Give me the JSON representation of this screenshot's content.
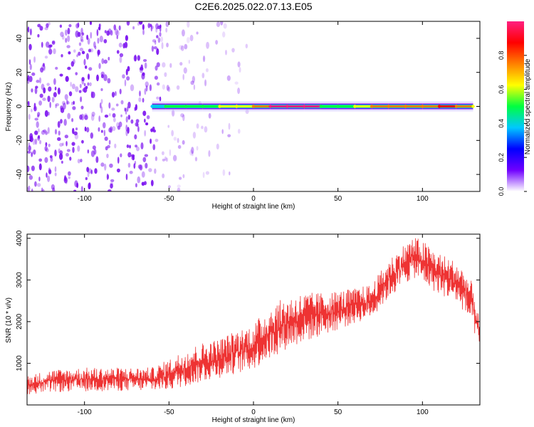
{
  "title": "C2E6.2025.022.07.13.E05",
  "colors": {
    "snr_line": "#ee3333",
    "ridge_low": "#6a00e8",
    "ridge_mid": "#00c8c0",
    "ridge_high": "#ff2050",
    "scatter": "#7a10f0"
  },
  "chart_data": [
    {
      "type": "heatmap",
      "xlabel": "Height of straight line (km)",
      "ylabel": "Frequency (Hz)",
      "xlim": [
        -134,
        134
      ],
      "ylim": [
        -50,
        50
      ],
      "x_ticks": [
        -100,
        -50,
        0,
        50,
        100
      ],
      "y_ticks": [
        -40,
        -20,
        0,
        20,
        40
      ],
      "colorbar": {
        "label": "Normalized spectral amplitude",
        "range": [
          0,
          1
        ],
        "ticks": [
          "0.0",
          "0.2",
          "0.4",
          "0.6",
          "0.8"
        ],
        "colormap": [
          "#ffffff",
          "#7000ff",
          "#0000ff",
          "#00c8ff",
          "#00ff40",
          "#ffff00",
          "#ff8000",
          "#ff0000",
          "#ff2080"
        ]
      },
      "ridge_frequency_hz": 0,
      "ridge_points": [
        {
          "x": -60,
          "amplitude": 0.35
        },
        {
          "x": -52,
          "amplitude": 0.45
        },
        {
          "x": -40,
          "amplitude": 0.5
        },
        {
          "x": -30,
          "amplitude": 0.55
        },
        {
          "x": -20,
          "amplitude": 0.6
        },
        {
          "x": -10,
          "amplitude": 0.65
        },
        {
          "x": 0,
          "amplitude": 0.8
        },
        {
          "x": 10,
          "amplitude": 0.95
        },
        {
          "x": 20,
          "amplitude": 1.0
        },
        {
          "x": 30,
          "amplitude": 0.95
        },
        {
          "x": 40,
          "amplitude": 0.45
        },
        {
          "x": 50,
          "amplitude": 0.55
        },
        {
          "x": 60,
          "amplitude": 0.65
        },
        {
          "x": 70,
          "amplitude": 0.7
        },
        {
          "x": 80,
          "amplitude": 0.75
        },
        {
          "x": 90,
          "amplitude": 0.8
        },
        {
          "x": 100,
          "amplitude": 0.75
        },
        {
          "x": 110,
          "amplitude": 0.9
        },
        {
          "x": 120,
          "amplitude": 0.8
        },
        {
          "x": 130,
          "amplitude": 0.6
        }
      ]
    },
    {
      "type": "line",
      "xlabel": "Height of straight line (km)",
      "ylabel": "SNR (10 * v/v)",
      "xlim": [
        -134,
        134
      ],
      "ylim": [
        0,
        4100
      ],
      "x_ticks": [
        -100,
        -50,
        0,
        50,
        100
      ],
      "y_ticks": [
        1000,
        2000,
        3000,
        4000
      ],
      "envelope": {
        "x": [
          -134,
          -120,
          -100,
          -80,
          -60,
          -50,
          -40,
          -30,
          -20,
          -10,
          0,
          10,
          20,
          30,
          40,
          50,
          60,
          70,
          80,
          90,
          95,
          100,
          110,
          120,
          125,
          130,
          134
        ],
        "min": [
          250,
          300,
          320,
          330,
          340,
          350,
          450,
          550,
          650,
          750,
          850,
          1100,
          1350,
          1500,
          1650,
          1800,
          1950,
          2100,
          2550,
          2900,
          3050,
          2900,
          2650,
          2450,
          2200,
          1800,
          1300
        ],
        "max": [
          700,
          850,
          900,
          900,
          900,
          1100,
          1350,
          1500,
          1600,
          1800,
          1950,
          2400,
          2600,
          2700,
          2700,
          2750,
          2800,
          2900,
          3500,
          3900,
          4050,
          3950,
          3650,
          3450,
          3250,
          2900,
          2000
        ]
      }
    }
  ]
}
